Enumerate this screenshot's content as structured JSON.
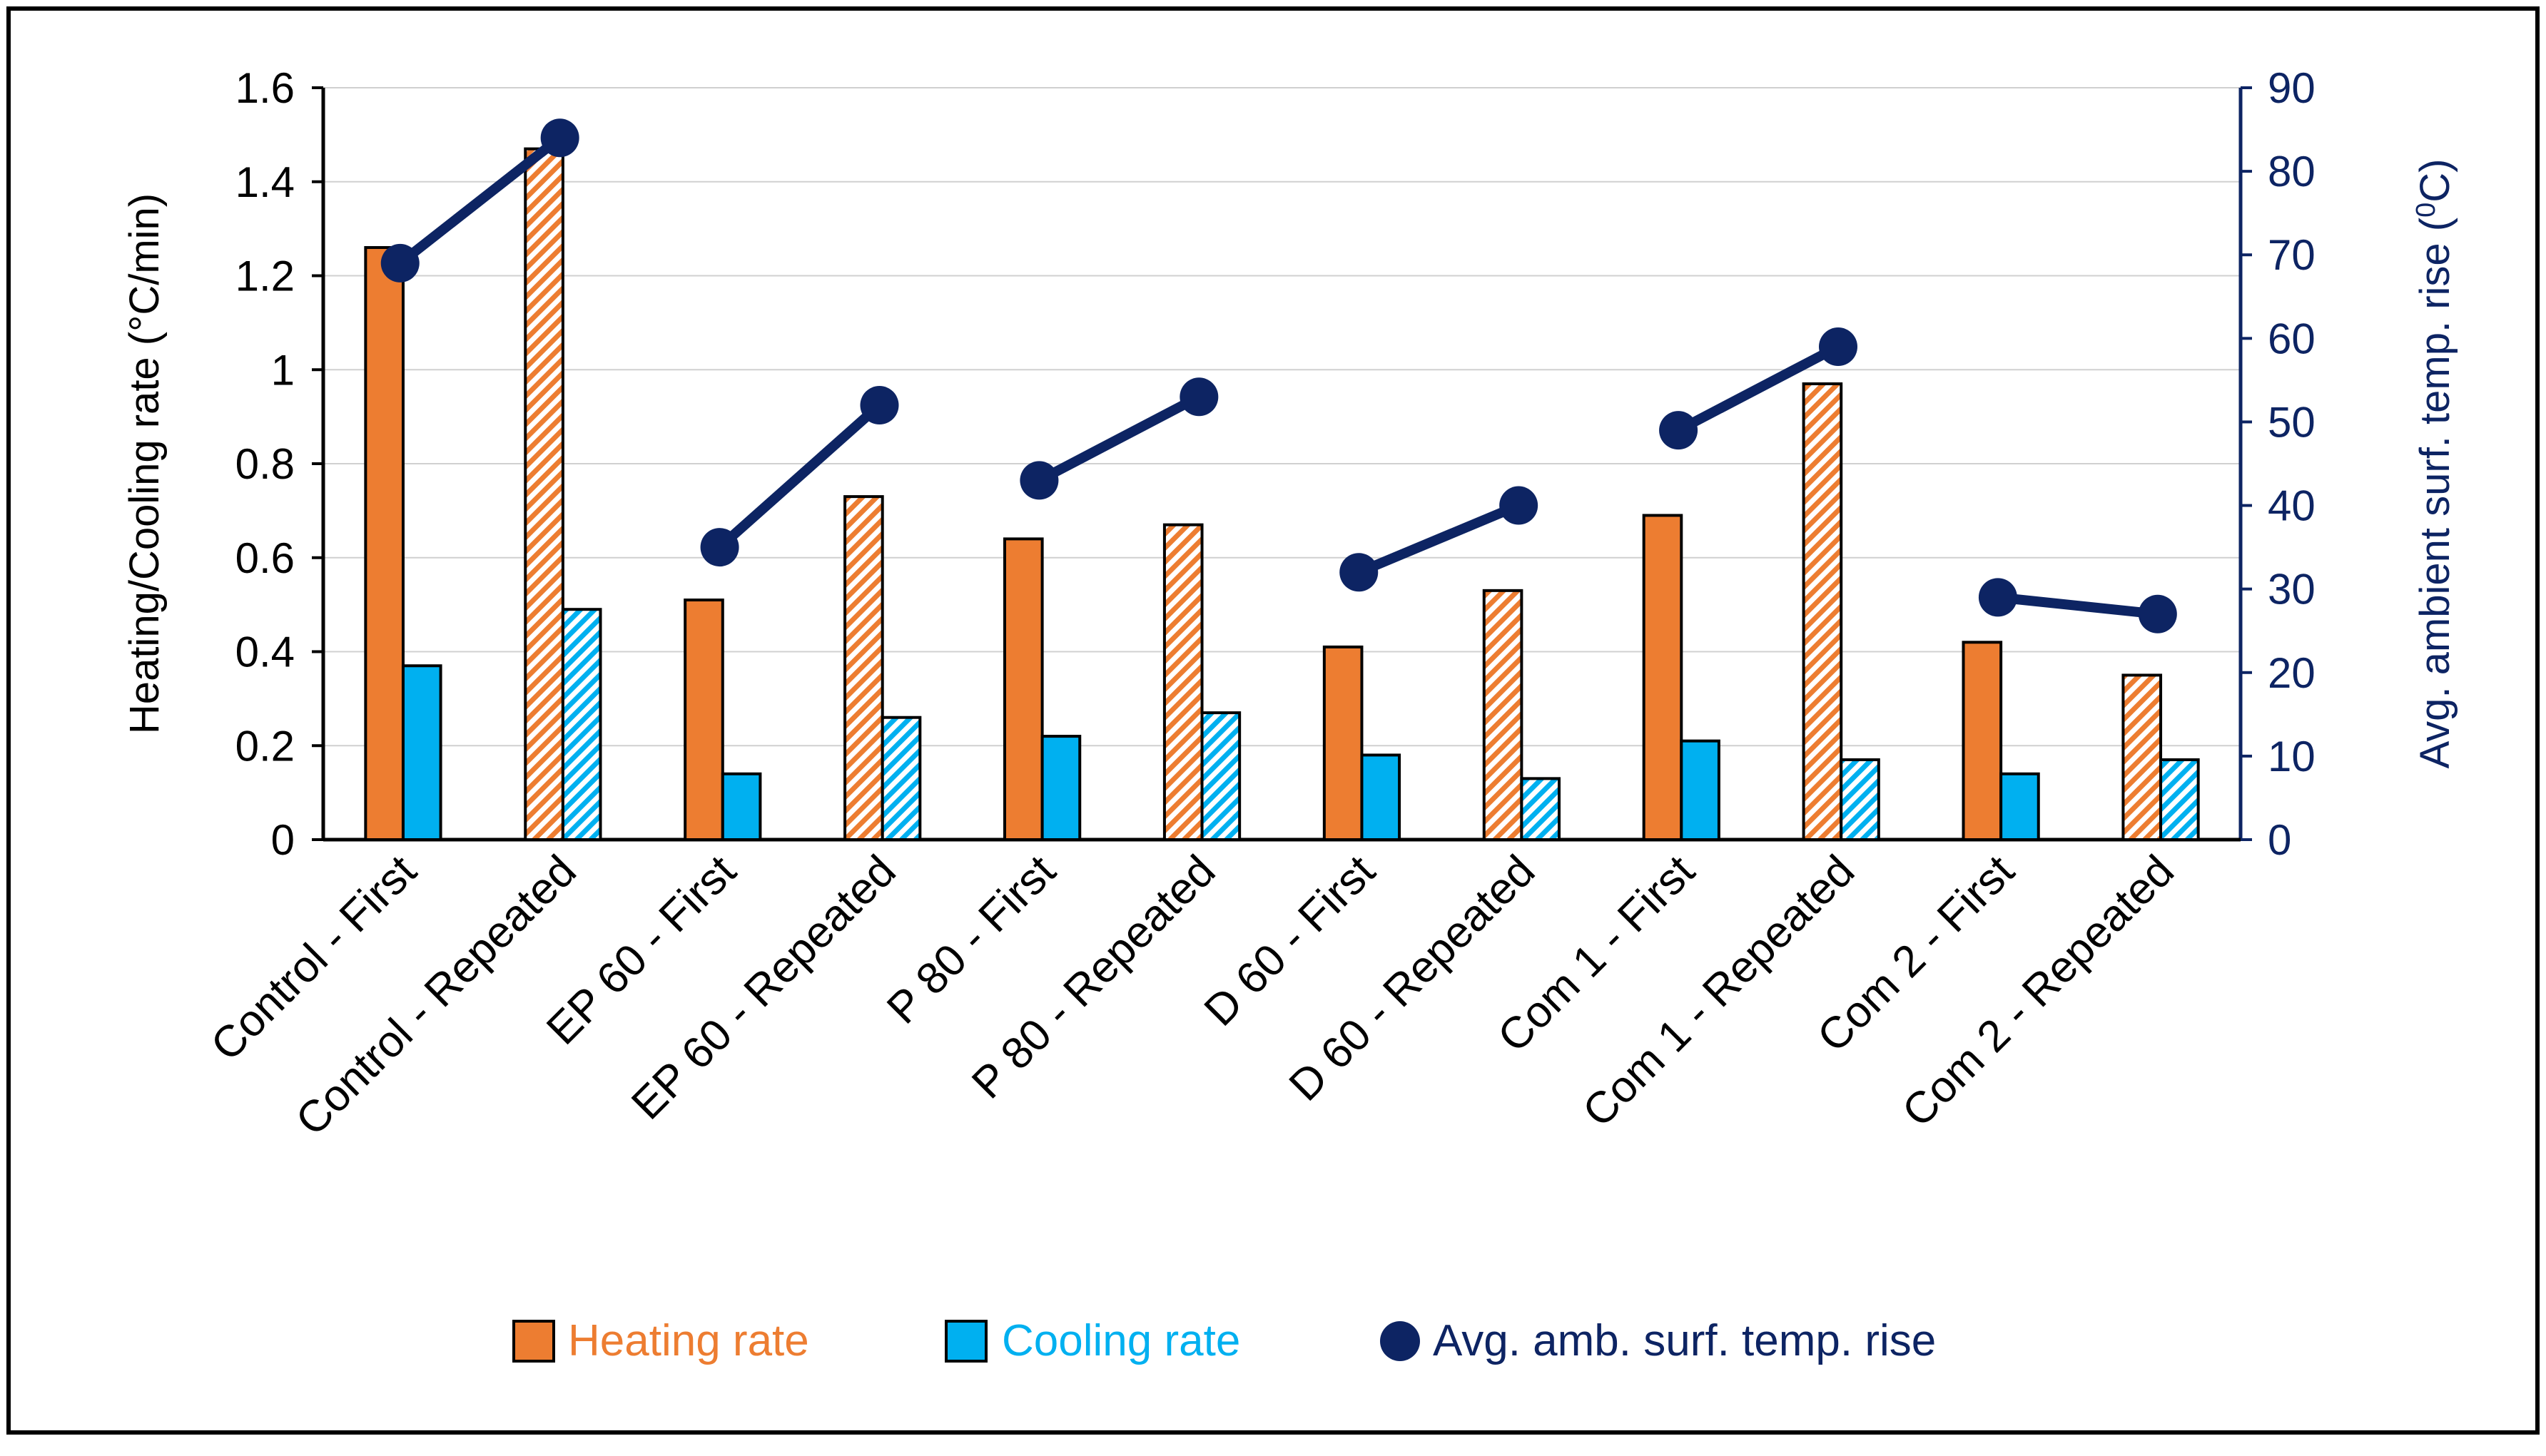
{
  "chart_data": {
    "type": "bar",
    "title": "",
    "categories": [
      "Control - First",
      "Control - Repeated",
      "EP 60 - First",
      "EP 60 - Repeated",
      "P 80 - First",
      "P 80 - Repeated",
      "D 60 - First",
      "D 60 - Repeated",
      "Com 1 - First",
      "Com 1 - Repeated",
      "Com 2 - First",
      "Com 2 - Repeated"
    ],
    "pattern": [
      "solid",
      "hatched",
      "solid",
      "hatched",
      "solid",
      "hatched",
      "solid",
      "hatched",
      "solid",
      "hatched",
      "solid",
      "hatched"
    ],
    "series": [
      {
        "name": "Heating rate",
        "kind": "bar",
        "axis": "left",
        "color": "#ED7D31",
        "values": [
          1.26,
          1.47,
          0.51,
          0.73,
          0.64,
          0.67,
          0.41,
          0.53,
          0.69,
          0.97,
          0.42,
          0.35
        ]
      },
      {
        "name": "Cooling rate",
        "kind": "bar",
        "axis": "left",
        "color": "#00B0F0",
        "values": [
          0.37,
          0.49,
          0.14,
          0.26,
          0.22,
          0.27,
          0.18,
          0.13,
          0.21,
          0.17,
          0.14,
          0.17
        ]
      },
      {
        "name": "Avg. amb. surf. temp. rise",
        "kind": "line",
        "axis": "right",
        "color": "#0D2463",
        "values": [
          69,
          84,
          35,
          52,
          43,
          53,
          32,
          40,
          49,
          59,
          29,
          27
        ]
      }
    ],
    "left_axis": {
      "label": "Heating/Cooling rate (°C/min)",
      "min": 0,
      "max": 1.6,
      "step": 0.2,
      "ticks": [
        "0",
        "0.2",
        "0.4",
        "0.6",
        "0.8",
        "1",
        "1.2",
        "1.4",
        "1.6"
      ]
    },
    "right_axis": {
      "label_main": "Avg. ambient surf. temp. rise (",
      "label_sup": "0",
      "label_end": "C)",
      "min": 0,
      "max": 90,
      "step": 10,
      "ticks": [
        "0",
        "10",
        "20",
        "30",
        "40",
        "50",
        "60",
        "70",
        "80",
        "90"
      ]
    },
    "grid": true,
    "legend_position": "bottom"
  }
}
